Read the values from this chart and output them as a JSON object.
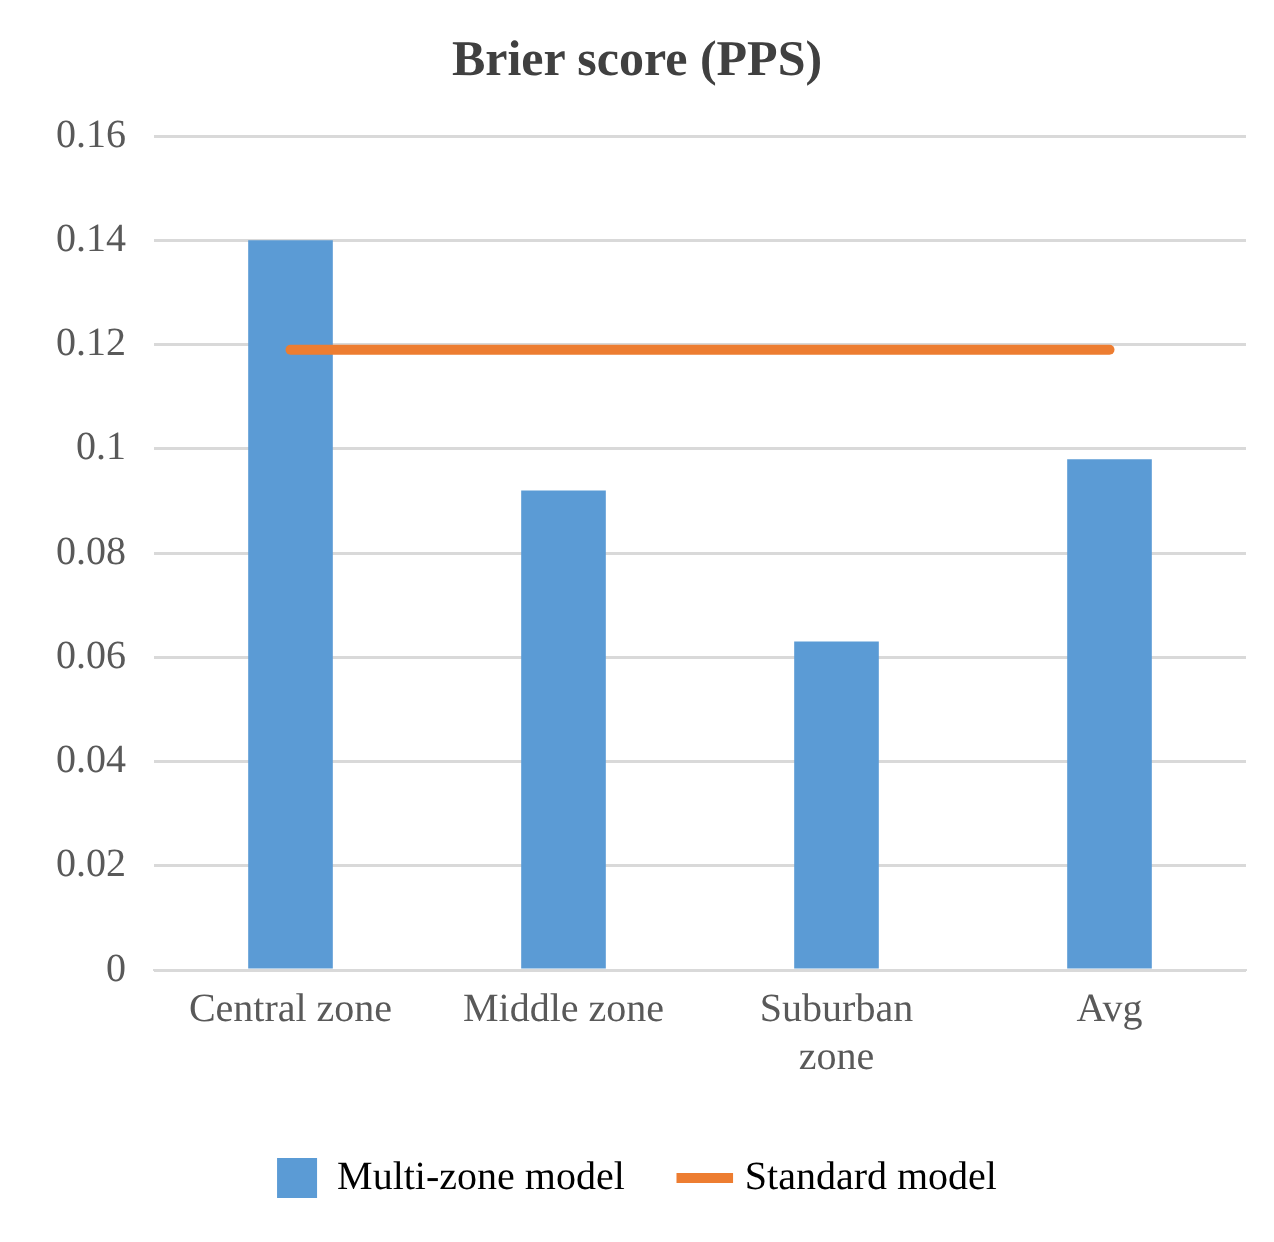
{
  "chart_data": {
    "type": "bar",
    "title": "Brier score (PPS)",
    "categories": [
      "Central zone",
      "Middle zone",
      "Suburban zone",
      "Avg"
    ],
    "series": [
      {
        "name": "Multi-zone model",
        "color": "#5b9bd5",
        "values": [
          0.14,
          0.092,
          0.063,
          0.098
        ]
      },
      {
        "name": "Standard model",
        "type": "line",
        "color": "#ed7d31",
        "values": [
          0.119,
          0.119,
          0.119,
          0.119
        ]
      }
    ],
    "ylim": [
      0,
      0.16
    ],
    "yticks": [
      0,
      0.02,
      0.04,
      0.06,
      0.08,
      0.1,
      0.12,
      0.14,
      0.16
    ],
    "grid": "y",
    "legend": "bottom",
    "marker": "none"
  }
}
